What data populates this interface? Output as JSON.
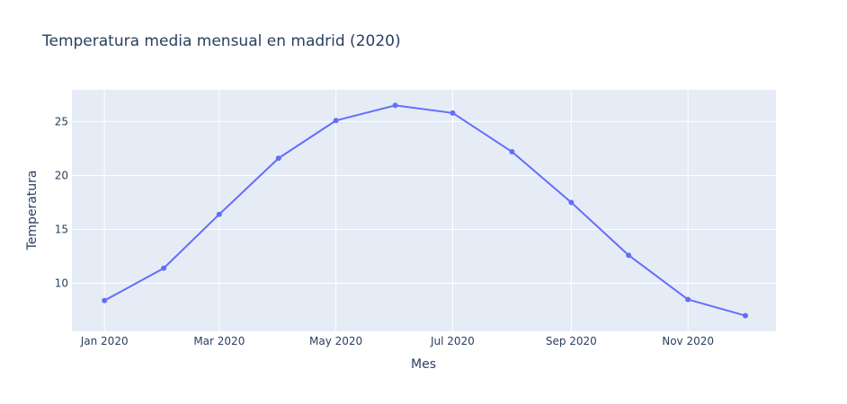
{
  "chart_data": {
    "type": "line",
    "title": "Temperatura media mensual en madrid (2020)",
    "xlabel": "Mes",
    "ylabel": "Temperatura",
    "x": [
      "2020-01-01",
      "2020-02-01",
      "2020-03-01",
      "2020-04-01",
      "2020-05-01",
      "2020-06-01",
      "2020-07-01",
      "2020-08-01",
      "2020-09-01",
      "2020-10-01",
      "2020-11-01",
      "2020-12-01"
    ],
    "series": [
      {
        "values": [
          8.4,
          11.4,
          16.4,
          21.6,
          25.1,
          26.5,
          25.8,
          22.2,
          17.5,
          12.6,
          8.5,
          7.0
        ],
        "color": "#636efa"
      }
    ],
    "x_ticks": [
      {
        "value": "2020-01-01",
        "label": "Jan 2020"
      },
      {
        "value": "2020-03-01",
        "label": "Mar 2020"
      },
      {
        "value": "2020-05-01",
        "label": "May 2020"
      },
      {
        "value": "2020-07-01",
        "label": "Jul 2020"
      },
      {
        "value": "2020-09-01",
        "label": "Sep 2020"
      },
      {
        "value": "2020-11-01",
        "label": "Nov 2020"
      }
    ],
    "y_ticks": [
      10,
      15,
      20,
      25
    ],
    "xlim": [
      "2019-12-15",
      "2020-12-17"
    ],
    "ylim": [
      5.55,
      27.95
    ],
    "grid": true,
    "plot_bg": "#e5ecf6",
    "grid_color": "#ffffff",
    "text_color": "#2a3f5f"
  }
}
